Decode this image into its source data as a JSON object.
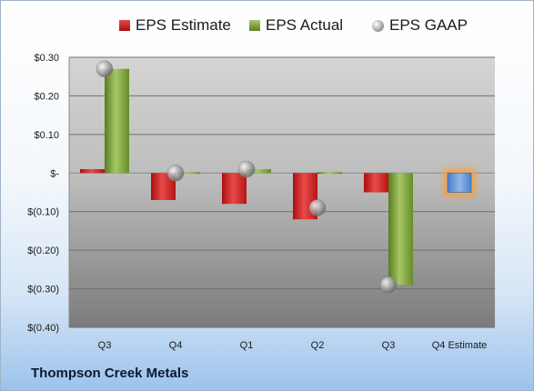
{
  "company": "Thompson Creek Metals",
  "legend": {
    "estimate": "EPS Estimate",
    "actual": "EPS Actual",
    "gaap": "EPS GAAP"
  },
  "colors": {
    "estimate": "#c91f1f",
    "actual": "#6f9a2a",
    "gaap": "#9a9a9a",
    "forecast": "#5b8fd6",
    "forecast_glow": "#f5a142"
  },
  "chart_data": {
    "type": "bar",
    "categories": [
      "Q3",
      "Q4",
      "Q1",
      "Q2",
      "Q3",
      "Q4 Estimate"
    ],
    "series": [
      {
        "name": "EPS Estimate",
        "values": [
          0.01,
          -0.07,
          -0.08,
          -0.12,
          -0.05,
          null
        ]
      },
      {
        "name": "EPS Actual",
        "values": [
          0.27,
          0.0,
          0.01,
          0.0,
          -0.29,
          null
        ]
      },
      {
        "name": "EPS GAAP",
        "type": "scatter",
        "values": [
          0.27,
          0.0,
          0.01,
          -0.09,
          -0.29,
          null
        ]
      }
    ],
    "forecast": {
      "category": "Q4 Estimate",
      "value": -0.05
    },
    "ylim": [
      -0.4,
      0.3
    ],
    "yticks": [
      0.3,
      0.2,
      0.1,
      0,
      -0.1,
      -0.2,
      -0.3,
      -0.4
    ],
    "ytick_labels": [
      "$0.30",
      "$0.20",
      "$0.10",
      "$-",
      "$(0.10)",
      "$(0.20)",
      "$(0.30)",
      "$(0.40)"
    ],
    "grid": true,
    "legend_position": "top"
  }
}
